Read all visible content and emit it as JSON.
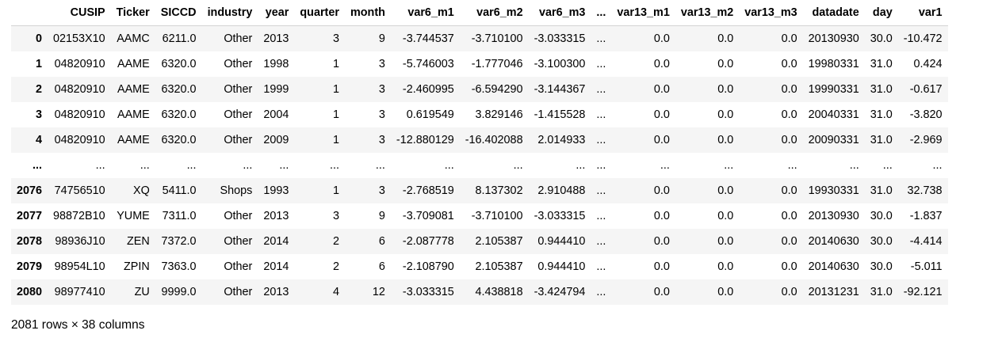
{
  "table": {
    "columns": [
      "CUSIP",
      "Ticker",
      "SICCD",
      "industry",
      "year",
      "quarter",
      "month",
      "var6_m1",
      "var6_m2",
      "var6_m3",
      "...",
      "var13_m1",
      "var13_m2",
      "var13_m3",
      "datadate",
      "day",
      "var1"
    ],
    "rows": [
      {
        "index": "0",
        "cells": [
          "02153X10",
          "AAMC",
          "6211.0",
          "Other",
          "2013",
          "3",
          "9",
          "-3.744537",
          "-3.710100",
          "-3.033315",
          "...",
          "0.0",
          "0.0",
          "0.0",
          "20130930",
          "30.0",
          "-10.472"
        ]
      },
      {
        "index": "1",
        "cells": [
          "04820910",
          "AAME",
          "6320.0",
          "Other",
          "1998",
          "1",
          "3",
          "-5.746003",
          "-1.777046",
          "-3.100300",
          "...",
          "0.0",
          "0.0",
          "0.0",
          "19980331",
          "31.0",
          "0.424"
        ]
      },
      {
        "index": "2",
        "cells": [
          "04820910",
          "AAME",
          "6320.0",
          "Other",
          "1999",
          "1",
          "3",
          "-2.460995",
          "-6.594290",
          "-3.144367",
          "...",
          "0.0",
          "0.0",
          "0.0",
          "19990331",
          "31.0",
          "-0.617"
        ]
      },
      {
        "index": "3",
        "cells": [
          "04820910",
          "AAME",
          "6320.0",
          "Other",
          "2004",
          "1",
          "3",
          "0.619549",
          "3.829146",
          "-1.415528",
          "...",
          "0.0",
          "0.0",
          "0.0",
          "20040331",
          "31.0",
          "-3.820"
        ]
      },
      {
        "index": "4",
        "cells": [
          "04820910",
          "AAME",
          "6320.0",
          "Other",
          "2009",
          "1",
          "3",
          "-12.880129",
          "-16.402088",
          "2.014933",
          "...",
          "0.0",
          "0.0",
          "0.0",
          "20090331",
          "31.0",
          "-2.969"
        ]
      },
      {
        "index": "...",
        "cells": [
          "...",
          "...",
          "...",
          "...",
          "...",
          "...",
          "...",
          "...",
          "...",
          "...",
          "...",
          "...",
          "...",
          "...",
          "...",
          "...",
          "..."
        ]
      },
      {
        "index": "2076",
        "cells": [
          "74756510",
          "XQ",
          "5411.0",
          "Shops",
          "1993",
          "1",
          "3",
          "-2.768519",
          "8.137302",
          "2.910488",
          "...",
          "0.0",
          "0.0",
          "0.0",
          "19930331",
          "31.0",
          "32.738"
        ]
      },
      {
        "index": "2077",
        "cells": [
          "98872B10",
          "YUME",
          "7311.0",
          "Other",
          "2013",
          "3",
          "9",
          "-3.709081",
          "-3.710100",
          "-3.033315",
          "...",
          "0.0",
          "0.0",
          "0.0",
          "20130930",
          "30.0",
          "-1.837"
        ]
      },
      {
        "index": "2078",
        "cells": [
          "98936J10",
          "ZEN",
          "7372.0",
          "Other",
          "2014",
          "2",
          "6",
          "-2.087778",
          "2.105387",
          "0.944410",
          "...",
          "0.0",
          "0.0",
          "0.0",
          "20140630",
          "30.0",
          "-4.414"
        ]
      },
      {
        "index": "2079",
        "cells": [
          "98954L10",
          "ZPIN",
          "7363.0",
          "Other",
          "2014",
          "2",
          "6",
          "-2.108790",
          "2.105387",
          "0.944410",
          "...",
          "0.0",
          "0.0",
          "0.0",
          "20140630",
          "30.0",
          "-5.011"
        ]
      },
      {
        "index": "2080",
        "cells": [
          "98977410",
          "ZU",
          "9999.0",
          "Other",
          "2013",
          "4",
          "12",
          "-3.033315",
          "4.438818",
          "-3.424794",
          "...",
          "0.0",
          "0.0",
          "0.0",
          "20131231",
          "31.0",
          "-92.121"
        ]
      }
    ]
  },
  "footer": {
    "shape": "2081 rows × 38 columns"
  }
}
